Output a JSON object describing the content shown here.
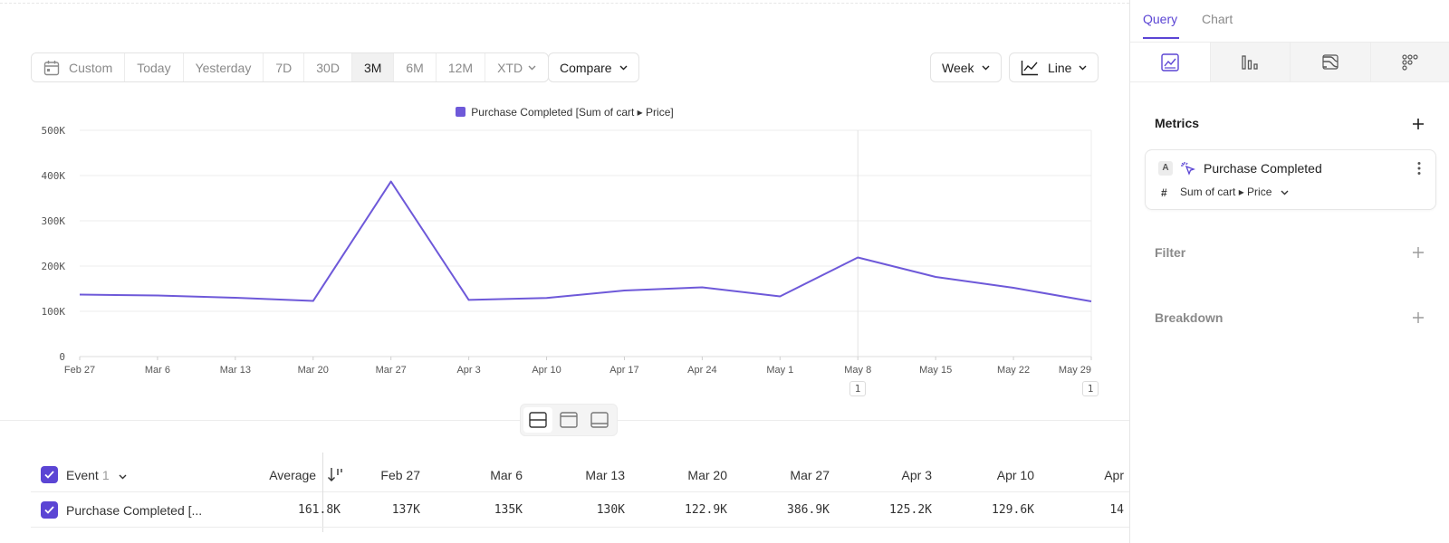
{
  "toolbar": {
    "range_custom": "Custom",
    "ranges": [
      "Today",
      "Yesterday",
      "7D",
      "30D",
      "3M",
      "6M",
      "12M"
    ],
    "range_active": "3M",
    "range_xtd": "XTD",
    "compare": "Compare",
    "interval": "Week",
    "chart_type": "Line"
  },
  "chart_data": {
    "type": "line",
    "legend_label": "Purchase Completed [Sum of cart ▸ Price]",
    "series_color": "#6e59d9",
    "categories": [
      "Feb 27",
      "Mar 6",
      "Mar 13",
      "Mar 20",
      "Mar 27",
      "Apr 3",
      "Apr 10",
      "Apr 17",
      "Apr 24",
      "May 1",
      "May 8",
      "May 15",
      "May 22",
      "May 29"
    ],
    "series": [
      {
        "name": "Purchase Completed [Sum of cart ▸ Price]",
        "values": [
          137000,
          135000,
          130000,
          122900,
          386900,
          125200,
          129600,
          146000,
          153000,
          133000,
          219000,
          176000,
          152000,
          122000
        ]
      }
    ],
    "y_ticks": [
      "0",
      "100K",
      "200K",
      "300K",
      "400K",
      "500K"
    ],
    "ylim": [
      0,
      500000
    ],
    "grid": true,
    "annotations": [
      {
        "category": "May 8",
        "label": "1"
      },
      {
        "category": "May 29",
        "label": "1"
      }
    ]
  },
  "table": {
    "event_header": "Event",
    "event_count": "1",
    "average_header": "Average",
    "columns": [
      "Feb 27",
      "Mar 6",
      "Mar 13",
      "Mar 20",
      "Mar 27",
      "Apr 3",
      "Apr 10",
      "Apr"
    ],
    "row": {
      "label": "Purchase Completed [...",
      "average": "161.8K",
      "values": [
        "137K",
        "135K",
        "130K",
        "122.9K",
        "386.9K",
        "125.2K",
        "129.6K",
        "14"
      ]
    }
  },
  "panel": {
    "tabs": [
      "Query",
      "Chart"
    ],
    "active_tab": "Query",
    "metrics_title": "Metrics",
    "metric": {
      "letter": "A",
      "name": "Purchase Completed",
      "hash": "#",
      "property": "Sum of cart ▸ Price"
    },
    "filter_title": "Filter",
    "breakdown_title": "Breakdown"
  }
}
